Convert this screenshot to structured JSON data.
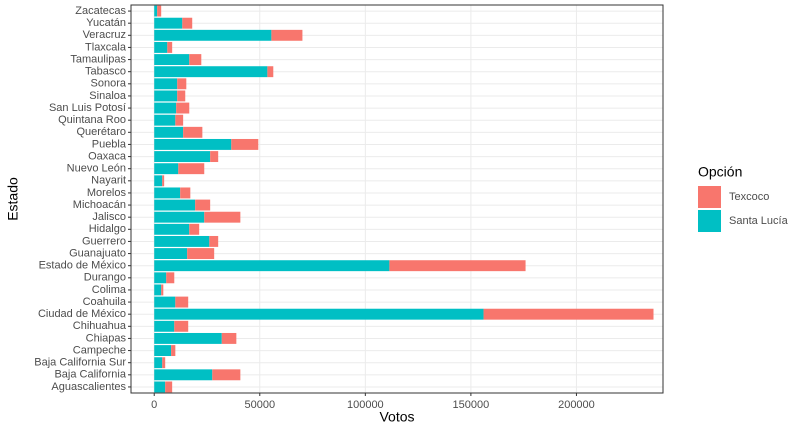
{
  "chart_data": {
    "type": "stacked-barh",
    "x_label": "Votos",
    "y_label": "Estado",
    "legend_title": "Opción",
    "categories": [
      "Aguascalientes",
      "Baja California",
      "Baja California Sur",
      "Campeche",
      "Chiapas",
      "Chihuahua",
      "Ciudad de México",
      "Coahuila",
      "Colima",
      "Durango",
      "Estado de México",
      "Guanajuato",
      "Guerrero",
      "Hidalgo",
      "Jalisco",
      "Michoacán",
      "Morelos",
      "Nayarit",
      "Nuevo León",
      "Oaxaca",
      "Puebla",
      "Querétaro",
      "Quintana Roo",
      "San Luis Potosí",
      "Sinaloa",
      "Sonora",
      "Tabasco",
      "Tamaulipas",
      "Tlaxcala",
      "Veracruz",
      "Yucatán",
      "Zacatecas"
    ],
    "series": [
      {
        "name": "Texcoco",
        "color": "#f8766d",
        "values": [
          3300,
          13300,
          1400,
          2000,
          6900,
          6600,
          80500,
          6100,
          1000,
          3800,
          64500,
          12800,
          4200,
          4700,
          17100,
          7100,
          4800,
          900,
          12300,
          3800,
          12800,
          9100,
          3700,
          6200,
          3800,
          4300,
          2800,
          5700,
          2300,
          14700,
          4700,
          1900
        ]
      },
      {
        "name": "Santa Lucía",
        "color": "#00bfc4",
        "values": [
          5200,
          27500,
          3800,
          8000,
          32000,
          9500,
          156000,
          10000,
          3300,
          5700,
          111400,
          15600,
          26100,
          16600,
          23700,
          19400,
          12300,
          3800,
          11400,
          26500,
          36500,
          13700,
          10000,
          10400,
          10900,
          10900,
          53600,
          16600,
          6200,
          55500,
          13300,
          1400
        ]
      }
    ],
    "xlim": [
      -11000,
      241000
    ],
    "xticks": [
      0,
      50000,
      100000,
      150000,
      200000
    ],
    "grid": true,
    "legend": "right"
  }
}
